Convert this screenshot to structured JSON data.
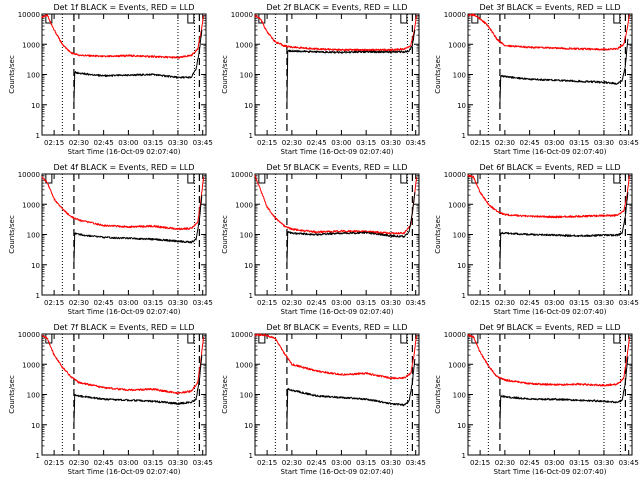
{
  "chart_data": [
    {
      "type": "line",
      "title": "Det 1f BLACK = Events, RED = LLD",
      "xlabel": "Start Time (16-Oct-09 02:07:40)",
      "ylabel": "Counts/sec",
      "yscale": "log",
      "xlim": [
        "02:07:40",
        "03:47:00"
      ],
      "ylim": [
        1,
        10000
      ],
      "xticks": [
        "02:15",
        "02:30",
        "02:45",
        "03:00",
        "03:15",
        "03:30",
        "03:45"
      ],
      "yticks": [
        "1",
        "10",
        "100",
        "1000",
        "10000"
      ],
      "flags": {
        "s": "02:10:00",
        "e": "03:36:00"
      },
      "vlines": {
        "dotted": [
          "02:20:00",
          "03:30:00",
          "03:40:00"
        ],
        "dashed": [
          "02:27:00",
          "03:43:00"
        ]
      },
      "series": [
        {
          "color": "#ff0000",
          "x": [
            "02:07:40",
            "02:11:00",
            "02:15:00",
            "02:20:00",
            "02:25:00",
            "02:30:00",
            "02:45:00",
            "03:00:00",
            "03:15:00",
            "03:30:00",
            "03:38:00",
            "03:42:00",
            "03:44:00",
            "03:45:30"
          ],
          "y": [
            8000,
            9000,
            3000,
            1000,
            520,
            440,
            390,
            420,
            390,
            360,
            420,
            700,
            2500,
            9000
          ]
        },
        {
          "color": "#000000",
          "x": [
            "02:27:00",
            "02:27:30",
            "02:30:00",
            "02:45:00",
            "03:00:00",
            "03:15:00",
            "03:30:00",
            "03:38:00",
            "03:41:00",
            "03:43:00",
            "03:44:30"
          ],
          "y": [
            10,
            120,
            110,
            90,
            95,
            100,
            80,
            80,
            150,
            600,
            3000
          ]
        }
      ]
    },
    {
      "type": "line",
      "title": "Det 2f BLACK = Events, RED = LLD",
      "xlabel": "Start Time (16-Oct-09 02:07:40)",
      "ylabel": "Counts/sec",
      "yscale": "log",
      "xlim": [
        "02:07:40",
        "03:47:00"
      ],
      "ylim": [
        1,
        10000
      ],
      "xticks": [
        "02:15",
        "02:30",
        "02:45",
        "03:00",
        "03:15",
        "03:30",
        "03:45"
      ],
      "yticks": [
        "1",
        "10",
        "100",
        "1000",
        "10000"
      ],
      "flags": {
        "s": "02:10:00",
        "e": "03:36:00"
      },
      "vlines": {
        "dotted": [
          "02:20:00",
          "03:30:00",
          "03:40:00"
        ],
        "dashed": [
          "02:27:00",
          "03:43:00"
        ]
      },
      "series": [
        {
          "color": "#ff0000",
          "x": [
            "02:07:40",
            "02:11:00",
            "02:15:00",
            "02:20:00",
            "02:25:00",
            "02:30:00",
            "02:45:00",
            "03:00:00",
            "03:15:00",
            "03:30:00",
            "03:38:00",
            "03:42:00",
            "03:44:00",
            "03:45:30"
          ],
          "y": [
            9000,
            7000,
            2500,
            1200,
            900,
            800,
            700,
            650,
            650,
            650,
            700,
            900,
            2500,
            9000
          ]
        },
        {
          "color": "#000000",
          "x": [
            "02:27:00",
            "02:27:30",
            "02:30:00",
            "02:45:00",
            "03:00:00",
            "03:15:00",
            "03:30:00",
            "03:38:00",
            "03:41:00",
            "03:43:00",
            "03:44:30"
          ],
          "y": [
            8,
            600,
            600,
            560,
            540,
            560,
            560,
            560,
            600,
            900,
            3000
          ]
        }
      ]
    },
    {
      "type": "line",
      "title": "Det 3f BLACK = Events, RED = LLD",
      "xlabel": "Start Time (16-Oct-09 02:07:40)",
      "ylabel": "Counts/sec",
      "yscale": "log",
      "xlim": [
        "02:07:40",
        "03:47:00"
      ],
      "ylim": [
        1,
        10000
      ],
      "xticks": [
        "02:15",
        "02:30",
        "02:45",
        "03:00",
        "03:15",
        "03:30",
        "03:45"
      ],
      "yticks": [
        "1",
        "10",
        "100",
        "1000",
        "10000"
      ],
      "flags": {
        "s": "02:10:00",
        "e": "03:36:00"
      },
      "vlines": {
        "dotted": [
          "02:20:00",
          "03:30:00",
          "03:40:00"
        ],
        "dashed": [
          "02:27:00",
          "03:43:00"
        ]
      },
      "series": [
        {
          "color": "#ff0000",
          "x": [
            "02:07:40",
            "02:11:00",
            "02:15:00",
            "02:20:00",
            "02:25:00",
            "02:30:00",
            "02:45:00",
            "03:00:00",
            "03:15:00",
            "03:30:00",
            "03:38:00",
            "03:42:00",
            "03:44:00",
            "03:45:30"
          ],
          "y": [
            9000,
            9500,
            7000,
            4000,
            1500,
            900,
            800,
            750,
            700,
            680,
            700,
            1000,
            3000,
            9500
          ]
        },
        {
          "color": "#000000",
          "x": [
            "02:27:00",
            "02:27:30",
            "02:30:00",
            "02:45:00",
            "03:00:00",
            "03:15:00",
            "03:30:00",
            "03:38:00",
            "03:41:00",
            "03:43:00",
            "03:44:30"
          ],
          "y": [
            10,
            90,
            85,
            70,
            65,
            60,
            55,
            50,
            60,
            200,
            1500
          ]
        }
      ]
    },
    {
      "type": "line",
      "title": "Det 4f BLACK = Events, RED = LLD",
      "xlabel": "Start Time (16-Oct-09 02:07:40)",
      "ylabel": "Counts/sec",
      "yscale": "log",
      "xlim": [
        "02:07:40",
        "03:47:00"
      ],
      "ylim": [
        1,
        10000
      ],
      "xticks": [
        "02:15",
        "02:30",
        "02:45",
        "03:00",
        "03:15",
        "03:30",
        "03:45"
      ],
      "yticks": [
        "1",
        "10",
        "100",
        "1000",
        "10000"
      ],
      "flags": {
        "s": "02:10:00",
        "e": "03:36:00"
      },
      "vlines": {
        "dotted": [
          "02:20:00",
          "03:30:00",
          "03:40:00"
        ],
        "dashed": [
          "02:27:00",
          "03:43:00"
        ]
      },
      "series": [
        {
          "color": "#ff0000",
          "x": [
            "02:07:40",
            "02:11:00",
            "02:15:00",
            "02:20:00",
            "02:25:00",
            "02:30:00",
            "02:45:00",
            "03:00:00",
            "03:15:00",
            "03:30:00",
            "03:38:00",
            "03:42:00",
            "03:44:00",
            "03:45:30"
          ],
          "y": [
            8000,
            5000,
            1500,
            700,
            400,
            300,
            200,
            180,
            190,
            150,
            160,
            250,
            1500,
            8000
          ]
        },
        {
          "color": "#000000",
          "x": [
            "02:27:00",
            "02:27:30",
            "02:30:00",
            "02:45:00",
            "03:00:00",
            "03:15:00",
            "03:30:00",
            "03:38:00",
            "03:41:00",
            "03:43:00",
            "03:44:30"
          ],
          "y": [
            10,
            110,
            100,
            80,
            75,
            70,
            60,
            55,
            70,
            300,
            2000
          ]
        }
      ]
    },
    {
      "type": "line",
      "title": "Det 5f BLACK = Events, RED = LLD",
      "xlabel": "Start Time (16-Oct-09 02:07:40)",
      "ylabel": "Counts/sec",
      "yscale": "log",
      "xlim": [
        "02:07:40",
        "03:47:00"
      ],
      "ylim": [
        1,
        10000
      ],
      "xticks": [
        "02:15",
        "02:30",
        "02:45",
        "03:00",
        "03:15",
        "03:30",
        "03:45"
      ],
      "yticks": [
        "1",
        "10",
        "100",
        "1000",
        "10000"
      ],
      "flags": {
        "s": "02:10:00",
        "e": "03:36:00"
      },
      "vlines": {
        "dotted": [
          "02:20:00",
          "03:30:00",
          "03:40:00"
        ],
        "dashed": [
          "02:27:00",
          "03:43:00"
        ]
      },
      "series": [
        {
          "color": "#ff0000",
          "x": [
            "02:07:40",
            "02:11:00",
            "02:15:00",
            "02:20:00",
            "02:25:00",
            "02:30:00",
            "02:45:00",
            "03:00:00",
            "03:15:00",
            "03:30:00",
            "03:38:00",
            "03:42:00",
            "03:44:00",
            "03:45:30"
          ],
          "y": [
            9000,
            3000,
            800,
            350,
            200,
            150,
            120,
            130,
            125,
            110,
            110,
            200,
            1500,
            8000
          ]
        },
        {
          "color": "#000000",
          "x": [
            "02:27:00",
            "02:27:30",
            "02:30:00",
            "02:45:00",
            "03:00:00",
            "03:15:00",
            "03:30:00",
            "03:38:00",
            "03:41:00",
            "03:43:00",
            "03:44:30"
          ],
          "y": [
            10,
            120,
            110,
            100,
            110,
            115,
            90,
            85,
            120,
            500,
            2500
          ]
        }
      ]
    },
    {
      "type": "line",
      "title": "Det 6f BLACK = Events, RED = LLD",
      "xlabel": "Start Time (16-Oct-09 02:07:40)",
      "ylabel": "Counts/sec",
      "yscale": "log",
      "xlim": [
        "02:07:40",
        "03:47:00"
      ],
      "ylim": [
        1,
        10000
      ],
      "xticks": [
        "02:15",
        "02:30",
        "02:45",
        "03:00",
        "03:15",
        "03:30",
        "03:45"
      ],
      "yticks": [
        "1",
        "10",
        "100",
        "1000",
        "10000"
      ],
      "flags": {
        "s": "02:10:00",
        "e": "03:36:00"
      },
      "vlines": {
        "dotted": [
          "02:20:00",
          "03:30:00",
          "03:40:00"
        ],
        "dashed": [
          "02:27:00",
          "03:43:00"
        ]
      },
      "series": [
        {
          "color": "#ff0000",
          "x": [
            "02:07:40",
            "02:11:00",
            "02:15:00",
            "02:20:00",
            "02:25:00",
            "02:30:00",
            "02:45:00",
            "03:00:00",
            "03:15:00",
            "03:30:00",
            "03:38:00",
            "03:42:00",
            "03:44:00",
            "03:45:30"
          ],
          "y": [
            9000,
            8000,
            2500,
            1000,
            600,
            450,
            400,
            380,
            400,
            420,
            430,
            600,
            2000,
            9000
          ]
        },
        {
          "color": "#000000",
          "x": [
            "02:27:00",
            "02:27:30",
            "02:30:00",
            "02:45:00",
            "03:00:00",
            "03:15:00",
            "03:30:00",
            "03:38:00",
            "03:41:00",
            "03:43:00",
            "03:44:30"
          ],
          "y": [
            10,
            110,
            110,
            100,
            95,
            90,
            95,
            95,
            110,
            400,
            2500
          ]
        }
      ]
    },
    {
      "type": "line",
      "title": "Det 7f BLACK = Events, RED = LLD",
      "xlabel": "Start Time (16-Oct-09 02:07:40)",
      "ylabel": "Counts/sec",
      "yscale": "log",
      "xlim": [
        "02:07:40",
        "03:47:00"
      ],
      "ylim": [
        1,
        10000
      ],
      "xticks": [
        "02:15",
        "02:30",
        "02:45",
        "03:00",
        "03:15",
        "03:30",
        "03:45"
      ],
      "yticks": [
        "1",
        "10",
        "100",
        "1000",
        "10000"
      ],
      "flags": {
        "s": "02:10:00",
        "e": "03:36:00"
      },
      "vlines": {
        "dotted": [
          "02:20:00",
          "03:30:00",
          "03:40:00"
        ],
        "dashed": [
          "02:27:00",
          "03:43:00"
        ]
      },
      "series": [
        {
          "color": "#ff0000",
          "x": [
            "02:07:40",
            "02:11:00",
            "02:15:00",
            "02:20:00",
            "02:25:00",
            "02:30:00",
            "02:45:00",
            "03:00:00",
            "03:15:00",
            "03:30:00",
            "03:38:00",
            "03:42:00",
            "03:44:00",
            "03:45:30"
          ],
          "y": [
            9000,
            7000,
            2000,
            800,
            400,
            250,
            170,
            140,
            150,
            110,
            130,
            250,
            1500,
            8000
          ]
        },
        {
          "color": "#000000",
          "x": [
            "02:27:00",
            "02:27:30",
            "02:30:00",
            "02:45:00",
            "03:00:00",
            "03:15:00",
            "03:30:00",
            "03:38:00",
            "03:41:00",
            "03:43:00",
            "03:44:30"
          ],
          "y": [
            10,
            100,
            90,
            70,
            65,
            60,
            50,
            55,
            70,
            300,
            2000
          ]
        }
      ]
    },
    {
      "type": "line",
      "title": "Det 8f BLACK = Events, RED = LLD",
      "xlabel": "Start Time (16-Oct-09 02:07:40)",
      "ylabel": "Counts/sec",
      "yscale": "log",
      "xlim": [
        "02:07:40",
        "03:47:00"
      ],
      "ylim": [
        1,
        10000
      ],
      "xticks": [
        "02:15",
        "02:30",
        "02:45",
        "03:00",
        "03:15",
        "03:30",
        "03:45"
      ],
      "yticks": [
        "1",
        "10",
        "100",
        "1000",
        "10000"
      ],
      "flags": {
        "s": "02:10:00",
        "e": "03:36:00"
      },
      "vlines": {
        "dotted": [
          "02:20:00",
          "03:30:00",
          "03:40:00"
        ],
        "dashed": [
          "02:27:00",
          "03:43:00"
        ]
      },
      "series": [
        {
          "color": "#ff0000",
          "x": [
            "02:07:40",
            "02:11:00",
            "02:15:00",
            "02:20:00",
            "02:25:00",
            "02:30:00",
            "02:45:00",
            "03:00:00",
            "03:15:00",
            "03:30:00",
            "03:38:00",
            "03:42:00",
            "03:44:00",
            "03:45:30"
          ],
          "y": [
            9000,
            9500,
            9000,
            7000,
            2500,
            1000,
            600,
            450,
            500,
            350,
            350,
            500,
            2000,
            9000
          ]
        },
        {
          "color": "#000000",
          "x": [
            "02:27:00",
            "02:27:30",
            "02:30:00",
            "02:45:00",
            "03:00:00",
            "03:15:00",
            "03:30:00",
            "03:38:00",
            "03:41:00",
            "03:43:00",
            "03:44:30"
          ],
          "y": [
            10,
            150,
            140,
            90,
            80,
            70,
            50,
            45,
            60,
            250,
            1500
          ]
        }
      ]
    },
    {
      "type": "line",
      "title": "Det 9f BLACK = Events, RED = LLD",
      "xlabel": "Start Time (16-Oct-09 02:07:40)",
      "ylabel": "Counts/sec",
      "yscale": "log",
      "xlim": [
        "02:07:40",
        "03:47:00"
      ],
      "ylim": [
        1,
        10000
      ],
      "xticks": [
        "02:15",
        "02:30",
        "02:45",
        "03:00",
        "03:15",
        "03:30",
        "03:45"
      ],
      "yticks": [
        "1",
        "10",
        "100",
        "1000",
        "10000"
      ],
      "flags": {
        "s": "02:10:00",
        "e": "03:36:00"
      },
      "vlines": {
        "dotted": [
          "02:20:00",
          "03:30:00",
          "03:40:00"
        ],
        "dashed": [
          "02:27:00",
          "03:43:00"
        ]
      },
      "series": [
        {
          "color": "#ff0000",
          "x": [
            "02:07:40",
            "02:11:00",
            "02:15:00",
            "02:20:00",
            "02:25:00",
            "02:30:00",
            "02:45:00",
            "03:00:00",
            "03:15:00",
            "03:30:00",
            "03:38:00",
            "03:42:00",
            "03:44:00",
            "03:45:30"
          ],
          "y": [
            9000,
            8000,
            2500,
            900,
            400,
            300,
            230,
            210,
            220,
            200,
            220,
            350,
            1800,
            8000
          ]
        },
        {
          "color": "#000000",
          "x": [
            "02:27:00",
            "02:27:30",
            "02:30:00",
            "02:45:00",
            "03:00:00",
            "03:15:00",
            "03:30:00",
            "03:38:00",
            "03:41:00",
            "03:43:00",
            "03:44:30"
          ],
          "y": [
            10,
            90,
            85,
            70,
            70,
            65,
            60,
            55,
            65,
            250,
            1800
          ]
        }
      ]
    }
  ]
}
